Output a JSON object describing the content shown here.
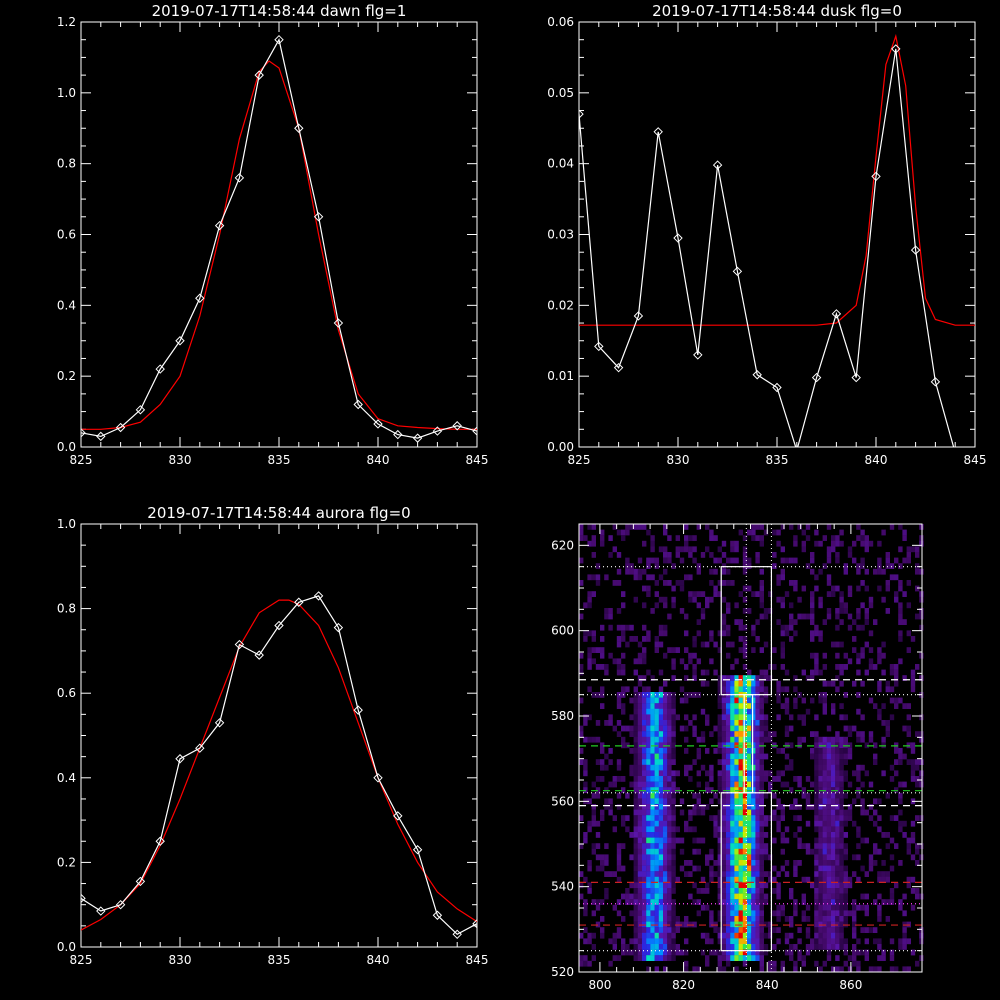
{
  "chart_data": [
    {
      "type": "line",
      "title": "2019-07-17T14:58:44 dawn flg=1",
      "xlim": [
        825,
        845
      ],
      "ylim": [
        0,
        1.2
      ],
      "xticks": [
        "825",
        "830",
        "835",
        "840",
        "845"
      ],
      "yticks": [
        "0.0",
        "0.2",
        "0.4",
        "0.6",
        "0.8",
        "1.0",
        "1.2"
      ],
      "series": [
        {
          "color": "#ffffff",
          "marker": "diamond",
          "x": [
            825,
            826,
            827,
            828,
            829,
            830,
            831,
            832,
            833,
            834,
            835,
            836,
            837,
            838,
            839,
            840,
            841,
            842,
            843,
            844,
            845
          ],
          "y": [
            0.04,
            0.03,
            0.055,
            0.105,
            0.22,
            0.3,
            0.42,
            0.625,
            0.76,
            1.05,
            1.15,
            0.9,
            0.65,
            0.35,
            0.12,
            0.065,
            0.035,
            0.025,
            0.045,
            0.06,
            0.045
          ]
        },
        {
          "color": "#ff0000",
          "marker": "none",
          "x": [
            825,
            826,
            827,
            828,
            829,
            830,
            831,
            832,
            833,
            834,
            834.5,
            835,
            836,
            837,
            838,
            839,
            840,
            841,
            842,
            843,
            844,
            845
          ],
          "y": [
            0.05,
            0.05,
            0.055,
            0.07,
            0.12,
            0.2,
            0.37,
            0.6,
            0.87,
            1.06,
            1.09,
            1.07,
            0.9,
            0.6,
            0.33,
            0.15,
            0.08,
            0.06,
            0.055,
            0.052,
            0.05,
            0.05
          ]
        }
      ]
    },
    {
      "type": "line",
      "title": "2019-07-17T14:58:44 dusk flg=0",
      "xlim": [
        825,
        845
      ],
      "ylim": [
        0,
        0.06
      ],
      "xticks": [
        "825",
        "830",
        "835",
        "840",
        "845"
      ],
      "yticks": [
        "0.00",
        "0.01",
        "0.02",
        "0.03",
        "0.04",
        "0.05",
        "0.06"
      ],
      "series": [
        {
          "color": "#ffffff",
          "marker": "diamond",
          "x": [
            825,
            826,
            827,
            828,
            829,
            830,
            831,
            832,
            833,
            834,
            835,
            836,
            837,
            838,
            839,
            840,
            841,
            842,
            843,
            844
          ],
          "y": [
            0.047,
            0.0142,
            0.0112,
            0.0185,
            0.0445,
            0.0295,
            0.013,
            0.0398,
            0.0248,
            0.0102,
            0.0084,
            -0.0005,
            0.0098,
            0.0188,
            0.0098,
            0.0382,
            0.0562,
            0.0278,
            0.0092,
            -0.0008
          ]
        },
        {
          "color": "#ff0000",
          "marker": "none",
          "x": [
            825,
            826,
            827,
            828,
            829,
            830,
            831,
            832,
            833,
            834,
            835,
            836,
            837,
            838,
            839,
            839.5,
            840,
            840.5,
            841,
            841.5,
            842,
            842.5,
            843,
            844,
            845
          ],
          "y": [
            0.0172,
            0.0172,
            0.0172,
            0.0172,
            0.0172,
            0.0172,
            0.0172,
            0.0172,
            0.0172,
            0.0172,
            0.0172,
            0.0172,
            0.0172,
            0.0175,
            0.02,
            0.027,
            0.041,
            0.054,
            0.058,
            0.051,
            0.034,
            0.021,
            0.018,
            0.0172,
            0.0172
          ]
        }
      ]
    },
    {
      "type": "line",
      "title": "2019-07-17T14:58:44 aurora flg=0",
      "xlim": [
        825,
        845
      ],
      "ylim": [
        0,
        1.0
      ],
      "xticks": [
        "825",
        "830",
        "835",
        "840",
        "845"
      ],
      "yticks": [
        "0.0",
        "0.2",
        "0.4",
        "0.6",
        "0.8",
        "1.0"
      ],
      "series": [
        {
          "color": "#ffffff",
          "marker": "diamond",
          "x": [
            825,
            826,
            827,
            828,
            829,
            830,
            831,
            832,
            833,
            834,
            835,
            836,
            837,
            838,
            839,
            840,
            841,
            842,
            843,
            844,
            845
          ],
          "y": [
            0.115,
            0.085,
            0.1,
            0.155,
            0.25,
            0.445,
            0.47,
            0.53,
            0.715,
            0.69,
            0.76,
            0.815,
            0.83,
            0.755,
            0.56,
            0.4,
            0.31,
            0.23,
            0.075,
            0.03,
            0.055
          ]
        },
        {
          "color": "#ff0000",
          "marker": "none",
          "x": [
            825,
            826,
            827,
            828,
            829,
            830,
            831,
            832,
            833,
            834,
            835,
            835.5,
            836,
            837,
            838,
            839,
            840,
            841,
            842,
            843,
            844,
            845
          ],
          "y": [
            0.04,
            0.065,
            0.1,
            0.15,
            0.24,
            0.35,
            0.47,
            0.59,
            0.71,
            0.79,
            0.82,
            0.82,
            0.81,
            0.76,
            0.66,
            0.53,
            0.4,
            0.29,
            0.2,
            0.13,
            0.09,
            0.06
          ]
        }
      ]
    },
    {
      "type": "heatmap",
      "title": "",
      "xlim": [
        795,
        877
      ],
      "ylim": [
        520,
        625
      ],
      "xticks": [
        "800",
        "820",
        "840",
        "860"
      ],
      "yticks": [
        "520",
        "540",
        "560",
        "580",
        "600",
        "620"
      ],
      "columns": [
        {
          "x_center": 813,
          "y_range": [
            522,
            586
          ],
          "intensity": 0.55
        },
        {
          "x_center": 834,
          "y_range": [
            522,
            590
          ],
          "intensity": 0.95
        },
        {
          "x_center": 855,
          "y_range": [
            525,
            575
          ],
          "intensity": 0.18
        }
      ],
      "boxes": [
        {
          "x": [
            829,
            841
          ],
          "y": [
            585,
            615
          ]
        },
        {
          "x": [
            834.5,
            836.5
          ],
          "y": [
            562,
            585
          ]
        },
        {
          "x": [
            829,
            841
          ],
          "y": [
            525,
            562
          ]
        }
      ],
      "vlines_dotted": [
        835,
        841
      ],
      "hlines": [
        {
          "y": 615,
          "style": "dotted",
          "color": "#ffffff"
        },
        {
          "y": 588.5,
          "style": "dashed",
          "color": "#ffffff"
        },
        {
          "y": 585,
          "style": "dotted",
          "color": "#ffffff"
        },
        {
          "y": 573,
          "style": "dashed",
          "color": "#22cc22"
        },
        {
          "y": 562.5,
          "style": "dashed",
          "color": "#22cc22"
        },
        {
          "y": 562,
          "style": "dotted",
          "color": "#ffffff"
        },
        {
          "y": 559,
          "style": "dashed",
          "color": "#ffffff"
        },
        {
          "y": 541,
          "style": "dashed",
          "color": "#cc2222"
        },
        {
          "y": 536,
          "style": "dotted",
          "color": "#ff44ff"
        },
        {
          "y": 531,
          "style": "dashed",
          "color": "#cc2222"
        },
        {
          "y": 525,
          "style": "dotted",
          "color": "#ffffff"
        }
      ]
    }
  ]
}
